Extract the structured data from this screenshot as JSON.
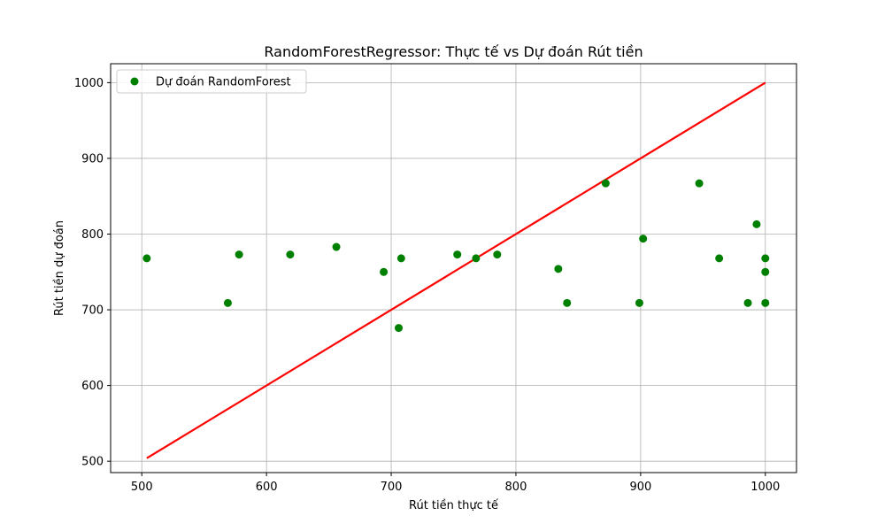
{
  "chart_data": {
    "type": "scatter",
    "title": "RandomForestRegressor: Thực tế vs Dự đoán Rút tiền",
    "xlabel": "Rút tiền thực tế",
    "ylabel": "Rút tiền dự đoán",
    "xlim": [
      475,
      1025
    ],
    "ylim": [
      485,
      1025
    ],
    "xticks": [
      500,
      600,
      700,
      800,
      900,
      1000
    ],
    "yticks": [
      500,
      600,
      700,
      800,
      900,
      1000
    ],
    "grid": true,
    "legend_position": "top-left",
    "series": [
      {
        "name": "Dự đoán RandomForest",
        "color": "#008000",
        "marker": "circle",
        "points": [
          [
            504,
            768
          ],
          [
            569,
            709
          ],
          [
            578,
            773
          ],
          [
            619,
            773
          ],
          [
            656,
            783
          ],
          [
            694,
            750
          ],
          [
            706,
            676
          ],
          [
            708,
            768
          ],
          [
            753,
            773
          ],
          [
            768,
            768
          ],
          [
            785,
            773
          ],
          [
            834,
            754
          ],
          [
            841,
            709
          ],
          [
            872,
            867
          ],
          [
            899,
            709
          ],
          [
            902,
            794
          ],
          [
            947,
            867
          ],
          [
            963,
            768
          ],
          [
            986,
            709
          ],
          [
            993,
            813
          ],
          [
            1000,
            768
          ],
          [
            1000,
            750
          ],
          [
            1000,
            709
          ]
        ]
      }
    ],
    "reference_line": {
      "color": "#ff0000",
      "from": [
        504,
        504
      ],
      "to": [
        1000,
        1000
      ]
    }
  }
}
